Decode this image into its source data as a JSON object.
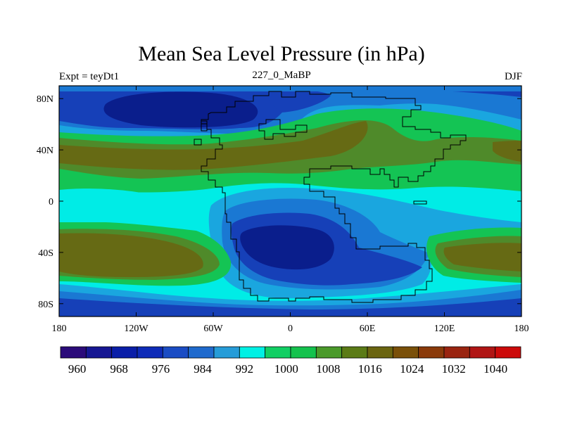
{
  "title": "Mean Sea Level Pressure (in hPa)",
  "left_label": "Expt = teyDt1",
  "center_label": "227_0_MaBP",
  "right_label": "DJF",
  "lon_ticks": [
    "180",
    "120W",
    "60W",
    "0",
    "60E",
    "120E",
    "180"
  ],
  "lat_ticks": [
    "80N",
    "40N",
    "0",
    "40S",
    "80S"
  ],
  "colorbar": {
    "colors": [
      "#2b0b7a",
      "#161793",
      "#0a1ea8",
      "#0e2bb8",
      "#1a4cc4",
      "#1f6acd",
      "#269cd8",
      "#00f0e4",
      "#11cf63",
      "#14c24d",
      "#4a9a2a",
      "#5b7b16",
      "#6b6510",
      "#7a5009",
      "#8a3a0a",
      "#9a2410",
      "#b01514",
      "#cc0a0a"
    ],
    "labels": [
      "960",
      "968",
      "976",
      "984",
      "992",
      "1000",
      "1008",
      "1016",
      "1024",
      "1032",
      "1040"
    ]
  },
  "colors": {
    "deep_low": "#0a1e8c",
    "low": "#163dbb",
    "mid_low": "#1b75d1",
    "sky": "#1ba3de",
    "cyan": "#00f0e8",
    "green": "#14c454",
    "olive": "#568a2a",
    "brown": "#6a6a12"
  }
}
